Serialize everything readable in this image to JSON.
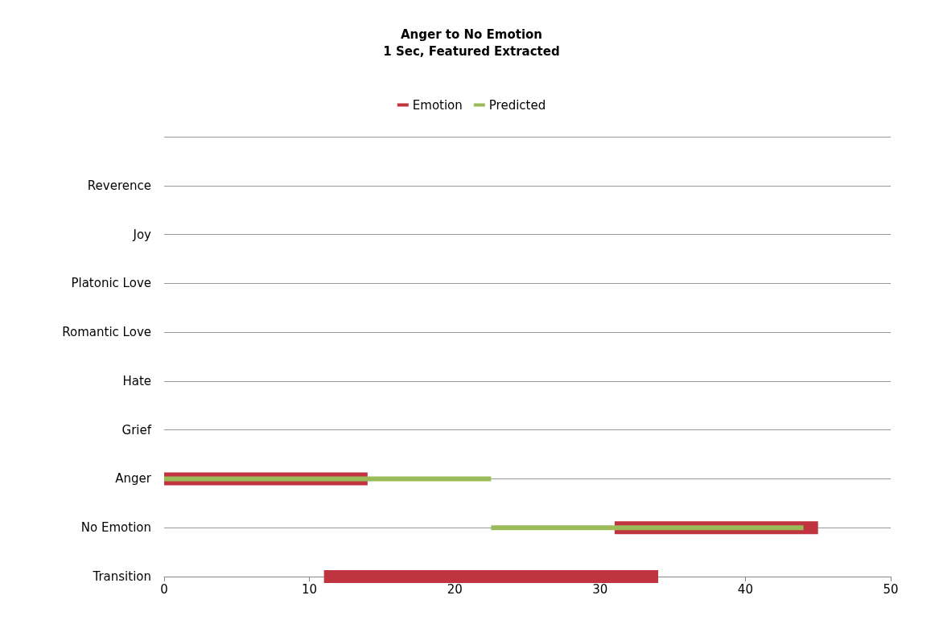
{
  "chart_data": {
    "type": "bar",
    "orientation": "horizontal",
    "title": "Anger to No Emotion",
    "subtitle": "1 Sec, Featured Extracted",
    "categories": [
      null,
      "Reverence",
      "Joy",
      "Platonic Love",
      "Romantic Love",
      "Hate",
      "Grief",
      "Anger",
      "No Emotion",
      "Transition"
    ],
    "series": [
      {
        "name": "Emotion",
        "color": "#c0343f",
        "base": [
          null,
          null,
          null,
          null,
          null,
          null,
          null,
          0,
          31,
          11
        ],
        "values": [
          null,
          null,
          null,
          null,
          null,
          null,
          null,
          14,
          14,
          23
        ]
      },
      {
        "name": "Predicted",
        "color": "#9bbb59",
        "base": [
          null,
          null,
          null,
          null,
          null,
          null,
          null,
          0,
          22.5,
          null
        ],
        "values": [
          null,
          null,
          null,
          null,
          null,
          null,
          null,
          22.5,
          21.5,
          null
        ]
      }
    ],
    "xlim": [
      0,
      50
    ],
    "xticks": [
      0,
      10,
      20,
      30,
      40,
      50
    ],
    "grid": "y",
    "legend": "top"
  }
}
